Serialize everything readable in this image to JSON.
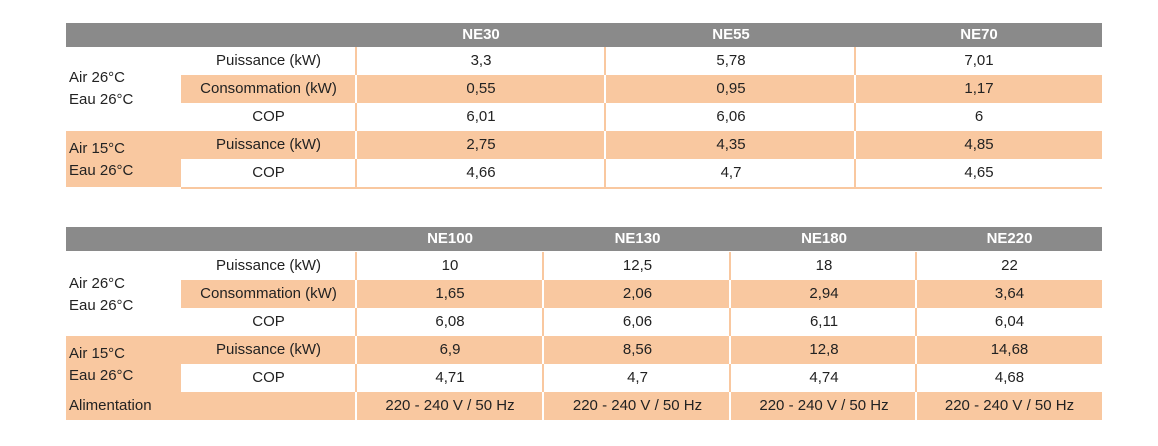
{
  "table1": {
    "models": [
      "NE30",
      "NE55",
      "NE70"
    ],
    "groups": [
      {
        "condition": [
          "Air 26°C",
          "Eau 26°C"
        ],
        "rows": [
          {
            "label": "Puissance (kW)",
            "values": [
              "3,3",
              "5,78",
              "7,01"
            ]
          },
          {
            "label": "Consommation (kW)",
            "values": [
              "0,55",
              "0,95",
              "1,17"
            ]
          },
          {
            "label": "COP",
            "values": [
              "6,01",
              "6,06",
              "6"
            ]
          }
        ]
      },
      {
        "condition": [
          "Air 15°C",
          "Eau 26°C"
        ],
        "rows": [
          {
            "label": "Puissance (kW)",
            "values": [
              "2,75",
              "4,35",
              "4,85"
            ]
          },
          {
            "label": "COP",
            "values": [
              "4,66",
              "4,7",
              "4,65"
            ]
          }
        ]
      }
    ]
  },
  "table2": {
    "models": [
      "NE100",
      "NE130",
      "NE180",
      "NE220"
    ],
    "groups": [
      {
        "condition": [
          "Air 26°C",
          "Eau 26°C"
        ],
        "rows": [
          {
            "label": "Puissance (kW)",
            "values": [
              "10",
              "12,5",
              "18",
              "22"
            ]
          },
          {
            "label": "Consommation (kW)",
            "values": [
              "1,65",
              "2,06",
              "2,94",
              "3,64"
            ]
          },
          {
            "label": "COP",
            "values": [
              "6,08",
              "6,06",
              "6,11",
              "6,04"
            ]
          }
        ]
      },
      {
        "condition": [
          "Air 15°C",
          "Eau 26°C"
        ],
        "rows": [
          {
            "label": "Puissance (kW)",
            "values": [
              "6,9",
              "8,56",
              "12,8",
              "14,68"
            ]
          },
          {
            "label": "COP",
            "values": [
              "4,71",
              "4,7",
              "4,74",
              "4,68"
            ]
          }
        ]
      }
    ],
    "supply": {
      "label": "Alimentation",
      "values": [
        "220 - 240 V / 50 Hz",
        "220 - 240 V / 50 Hz",
        "220 - 240 V / 50 Hz",
        "220 - 240 V / 50 Hz"
      ]
    }
  },
  "colors": {
    "header": "#8a8a8a",
    "shade": "#f9c8a0"
  }
}
